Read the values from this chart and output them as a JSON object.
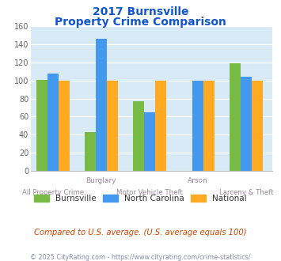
{
  "title_line1": "2017 Burnsville",
  "title_line2": "Property Crime Comparison",
  "series": {
    "Burnsville": [
      101,
      43,
      77,
      null,
      119
    ],
    "North Carolina": [
      108,
      146,
      65,
      100,
      104
    ],
    "National": [
      100,
      100,
      100,
      100,
      100
    ]
  },
  "colors": {
    "Burnsville": "#77bb44",
    "North Carolina": "#4499ee",
    "National": "#ffaa22"
  },
  "top_labels": [
    "",
    "Burglary",
    "",
    "Arson",
    ""
  ],
  "bottom_labels": [
    "All Property Crime",
    "",
    "Motor Vehicle Theft",
    "",
    "Larceny & Theft"
  ],
  "ylim": [
    0,
    160
  ],
  "yticks": [
    0,
    20,
    40,
    60,
    80,
    100,
    120,
    140,
    160
  ],
  "plot_bg_color": "#d8eaf5",
  "title_color": "#1155cc",
  "footer_text": "© 2025 CityRating.com - https://www.cityrating.com/crime-statistics/",
  "note_text": "Compared to U.S. average. (U.S. average equals 100)",
  "note_color": "#cc4400",
  "footer_color": "#8888aa",
  "xlabel_color": "#998899",
  "ylabel_color": "#666666"
}
